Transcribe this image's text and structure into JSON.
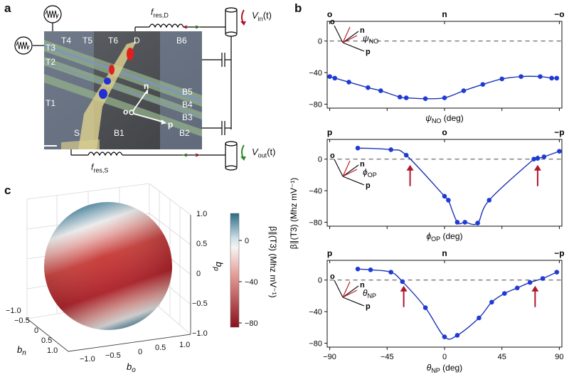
{
  "panels": {
    "a": "a",
    "b": "b",
    "c": "c"
  },
  "device": {
    "gates_left": [
      "T4",
      "T5",
      "T6",
      "D",
      "B6"
    ],
    "gates_side": [
      "T3",
      "T2",
      "T1"
    ],
    "gates_right": [
      "B5",
      "B4",
      "B3",
      "B2"
    ],
    "gates_bottom": [
      "S",
      "B1"
    ],
    "axis_o": "o",
    "axis_n": "n",
    "axis_p": "p",
    "res_d": "f",
    "res_d_sub": "res,D",
    "res_s": "f",
    "res_s_sub": "res,S",
    "vin": "V",
    "vin_sub": "in",
    "vin_arg": "(t)",
    "vout": "V",
    "vout_sub": "out",
    "vout_arg": "(t)"
  },
  "sphere": {
    "colorbar_ticks": [
      "0",
      "−40",
      "−80"
    ],
    "colorbar_label": "β∥(T3) (Mhz mV⁻¹)",
    "bp_label": "b",
    "bp_sub": "p",
    "bn_label": "b",
    "bn_sub": "n",
    "bo_label": "b",
    "bo_sub": "o",
    "z_ticks": [
      "1.0",
      "0.5",
      "0",
      "−0.5",
      "−1.0"
    ],
    "y_ticks": [
      "−1.0",
      "−0.5",
      "0",
      "0.5",
      "1.0"
    ],
    "x_ticks": [
      "−1.0",
      "−0.5",
      "0",
      "0.5",
      "1.0"
    ]
  },
  "shared_ylabel": "β∥(T3) (Mhz mV⁻¹)",
  "chart_data": [
    {
      "type": "scatter",
      "top_labels": [
        "o",
        "n",
        "−o"
      ],
      "xlabel": "ψ",
      "xlabel_sub": "NO",
      "xlabel_unit": " (deg)",
      "inset_labels": [
        "o",
        "n",
        "p"
      ],
      "inset_angle": "ψ",
      "inset_angle_sub": "NO",
      "yticks": [
        "0",
        "−40",
        "−80"
      ],
      "ylim": [
        -85,
        25
      ],
      "x": [
        -90,
        -86,
        -75,
        -60,
        -50,
        -35,
        -30,
        -15,
        0,
        15,
        30,
        45,
        60,
        75,
        84,
        88
      ],
      "y": [
        -45,
        -47,
        -52,
        -59,
        -63,
        -71,
        -72,
        -73,
        -72,
        -63,
        -55,
        -48,
        -45,
        -45,
        -47,
        -47
      ],
      "arrows": []
    },
    {
      "type": "scatter",
      "top_labels": [
        "p",
        "o",
        "−p"
      ],
      "xlabel": "ϕ",
      "xlabel_sub": "OP",
      "xlabel_unit": " (deg)",
      "inset_labels": [
        "o",
        "n",
        "p"
      ],
      "inset_angle": "ϕ",
      "inset_angle_sub": "OP",
      "yticks": [
        "0",
        "−40",
        "−80"
      ],
      "ylim": [
        -85,
        25
      ],
      "x": [
        -68,
        -42,
        -30,
        0,
        3,
        10,
        16,
        26,
        35,
        70,
        73,
        78,
        90
      ],
      "y": [
        14,
        12,
        5,
        -47,
        -52,
        -80,
        -80,
        -81,
        -52,
        0,
        1,
        3,
        10
      ],
      "arrows": [
        -27,
        73
      ]
    },
    {
      "type": "scatter",
      "top_labels": [
        "p",
        "n",
        "−p"
      ],
      "xlabel": "θ",
      "xlabel_sub": "NP",
      "xlabel_unit": " (deg)",
      "inset_labels": [
        "o",
        "n",
        "p"
      ],
      "inset_angle": "θ",
      "inset_angle_sub": "NP",
      "yticks": [
        "0",
        "−40",
        "−80"
      ],
      "xticks": [
        "−90",
        "−45",
        "0",
        "45",
        "90"
      ],
      "xtick_values": [
        -90,
        -45,
        0,
        45,
        90
      ],
      "ylim": [
        -85,
        25
      ],
      "x": [
        -68,
        -58,
        -42,
        -33,
        -15,
        0,
        10,
        27,
        37,
        47,
        57,
        67,
        77,
        88
      ],
      "y": [
        14,
        13,
        10,
        -2,
        -35,
        -72,
        -70,
        -48,
        -28,
        -17,
        -10,
        -3,
        2,
        10
      ],
      "arrows": [
        -32,
        71
      ]
    }
  ]
}
